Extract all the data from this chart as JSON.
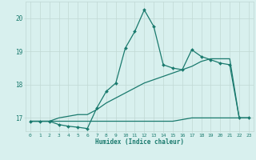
{
  "xlabel": "Humidex (Indice chaleur)",
  "ylabel": "",
  "bg_color": "#d8f0ee",
  "grid_color": "#c0d8d4",
  "line_color": "#1a7a6e",
  "xlim": [
    -0.5,
    23.5
  ],
  "ylim": [
    16.6,
    20.5
  ],
  "yticks": [
    17,
    18,
    19,
    20
  ],
  "xticks": [
    0,
    1,
    2,
    3,
    4,
    5,
    6,
    7,
    8,
    9,
    10,
    11,
    12,
    13,
    14,
    15,
    16,
    17,
    18,
    19,
    20,
    21,
    22,
    23
  ],
  "series1_x": [
    0,
    1,
    2,
    3,
    4,
    5,
    6,
    7,
    8,
    9,
    10,
    11,
    12,
    13,
    14,
    15,
    16,
    17,
    18,
    19,
    20,
    21,
    22,
    23
  ],
  "series1_y": [
    16.9,
    16.9,
    16.9,
    16.8,
    16.75,
    16.72,
    16.68,
    17.3,
    17.8,
    18.05,
    19.1,
    19.6,
    20.25,
    19.75,
    18.6,
    18.5,
    18.45,
    19.05,
    18.85,
    18.75,
    18.65,
    18.6,
    17.0,
    17.0
  ],
  "series2_x": [
    0,
    1,
    2,
    3,
    4,
    5,
    6,
    7,
    8,
    9,
    10,
    11,
    12,
    13,
    14,
    15,
    16,
    17,
    18,
    19,
    20,
    21,
    22,
    23
  ],
  "series2_y": [
    16.9,
    16.9,
    16.9,
    17.0,
    17.05,
    17.1,
    17.1,
    17.25,
    17.45,
    17.6,
    17.75,
    17.9,
    18.05,
    18.15,
    18.25,
    18.35,
    18.45,
    18.55,
    18.7,
    18.78,
    18.78,
    18.78,
    17.0,
    17.0
  ],
  "series3_x": [
    0,
    1,
    2,
    3,
    4,
    5,
    6,
    7,
    8,
    9,
    10,
    11,
    12,
    13,
    14,
    15,
    16,
    17,
    18,
    19,
    20,
    21,
    22,
    23
  ],
  "series3_y": [
    16.9,
    16.9,
    16.9,
    16.9,
    16.9,
    16.9,
    16.9,
    16.9,
    16.9,
    16.9,
    16.9,
    16.9,
    16.9,
    16.9,
    16.9,
    16.9,
    16.95,
    17.0,
    17.0,
    17.0,
    17.0,
    17.0,
    17.0,
    17.0
  ]
}
